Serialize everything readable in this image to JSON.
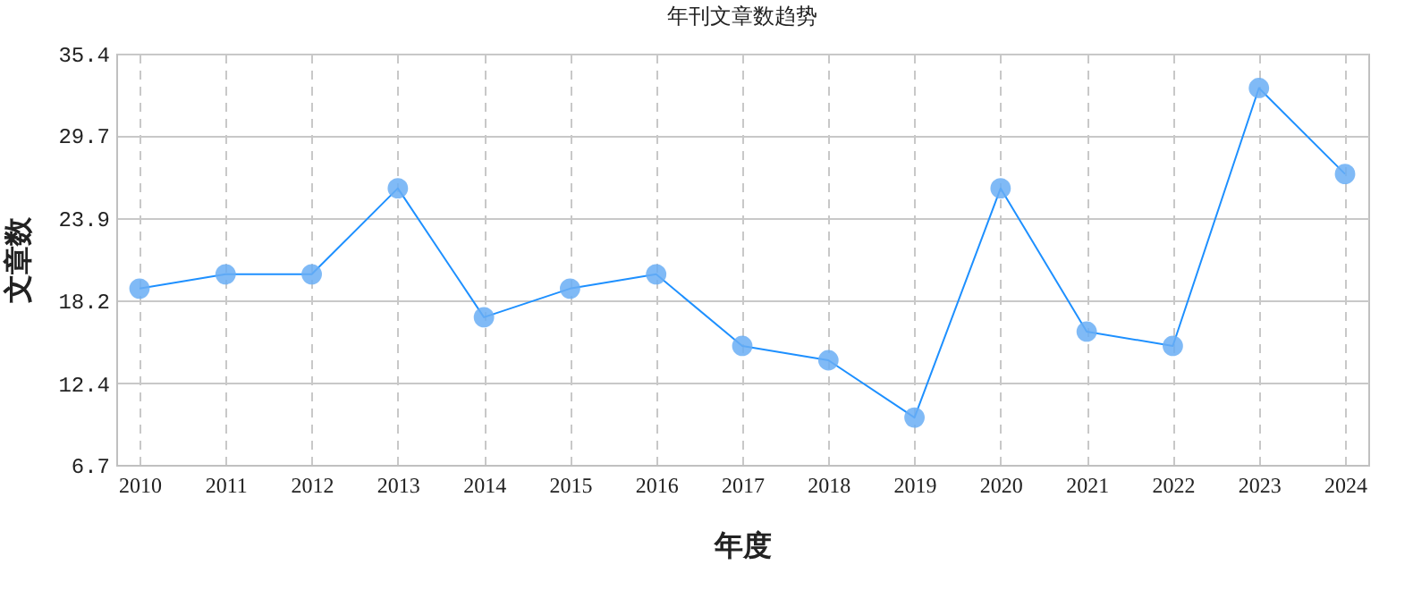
{
  "chart_data": {
    "type": "line",
    "title": "年刊文章数趋势",
    "xlabel": "年度",
    "ylabel": "文章数",
    "categories": [
      "2010",
      "2011",
      "2012",
      "2013",
      "2014",
      "2015",
      "2016",
      "2017",
      "2018",
      "2019",
      "2020",
      "2021",
      "2022",
      "2023",
      "2024"
    ],
    "series": [
      {
        "color": "#1e90ff",
        "values": [
          19,
          20,
          20,
          26,
          17,
          19,
          20,
          15,
          14,
          10,
          26,
          16,
          15,
          33,
          27
        ]
      }
    ],
    "ylim": [
      6.7,
      35.4
    ],
    "yticks": [
      6.7,
      12.4,
      18.2,
      23.9,
      29.7,
      35.4
    ],
    "grid": true,
    "marker": "circle",
    "line_style": "solid",
    "legend": false
  }
}
